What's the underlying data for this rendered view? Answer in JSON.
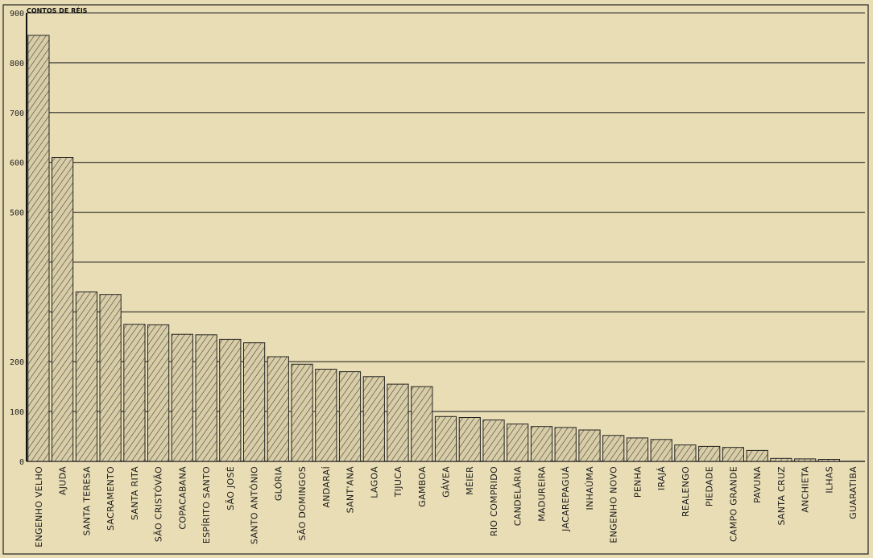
{
  "chart_data": {
    "type": "bar",
    "title": "",
    "unit_label": "CONTOS DE RÉIS",
    "ylim": [
      0,
      900
    ],
    "yticks": [
      0,
      100,
      200,
      300,
      400,
      500,
      600,
      700,
      800,
      900
    ],
    "ytick_labels": [
      "0",
      "100",
      "200",
      "",
      "",
      "500",
      "600",
      "700",
      "800",
      "900"
    ],
    "grid": true,
    "bar_fill": "hatched",
    "colors": {
      "background": "#e9ddb5",
      "bar_fill": "#d8cda6",
      "bar_stroke": "#222222",
      "hatch": "#3a3a3a",
      "grid": "#2a2a2a"
    },
    "categories": [
      "ENGENHO VELHO",
      "AJUDA",
      "SANTA TERESA",
      "SACRAMENTO",
      "SANTA RITA",
      "SÃO CRISTÓVÃO",
      "COPACABANA",
      "ESPÍRITO SANTO",
      "SÃO JOSÉ",
      "SANTO ANTÔNIO",
      "GLÓRIA",
      "SÃO DOMINGOS",
      "ANDARAÍ",
      "SANT'ANA",
      "LAGOA",
      "TIJUCA",
      "GAMBOA",
      "GÁVEA",
      "MÉIER",
      "RIO COMPRIDO",
      "CANDELÁRIA",
      "MADUREIRA",
      "JACAREPAGUÁ",
      "INHAÚMA",
      "ENGENHO NOVO",
      "PENHA",
      "IRAJÁ",
      "REALENGO",
      "PIEDADE",
      "CAMPO GRANDE",
      "PAVUNA",
      "SANTA CRUZ",
      "ANCHIETA",
      "ILHAS",
      "GUARATIBA"
    ],
    "values": [
      855,
      610,
      340,
      335,
      275,
      274,
      255,
      254,
      245,
      238,
      210,
      195,
      185,
      180,
      170,
      155,
      150,
      90,
      88,
      83,
      75,
      70,
      68,
      63,
      52,
      47,
      44,
      33,
      30,
      28,
      22,
      6,
      5,
      4,
      0
    ]
  }
}
